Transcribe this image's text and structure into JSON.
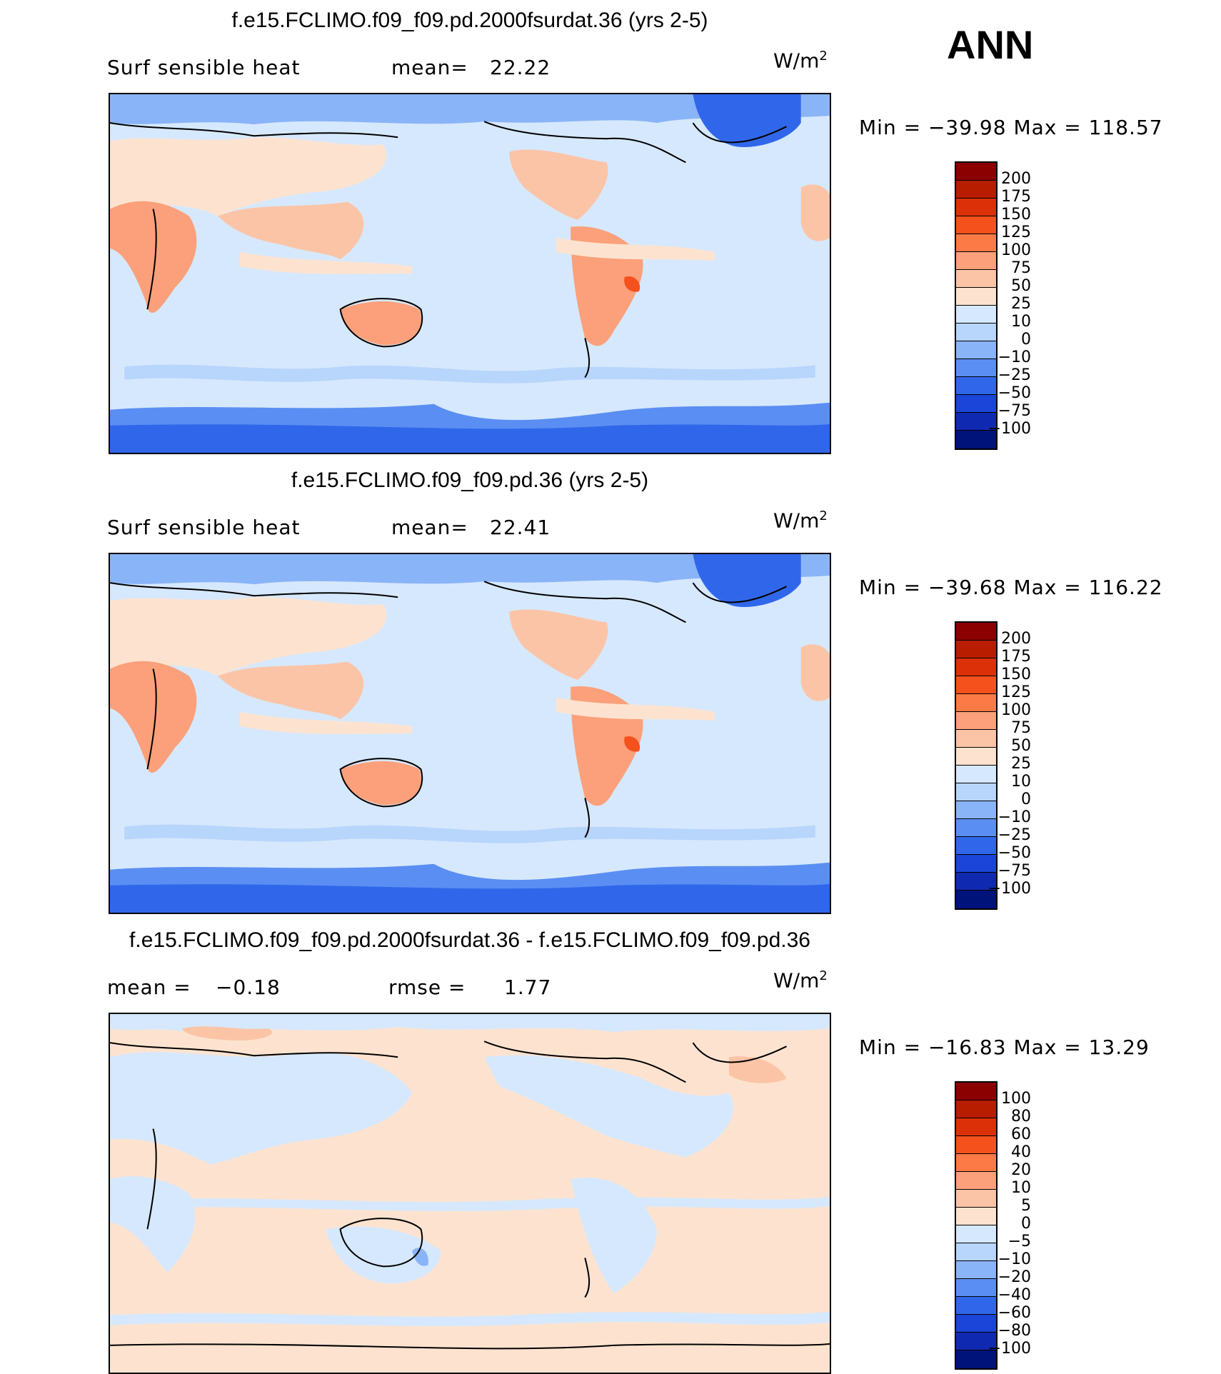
{
  "season": "ANN",
  "units": "W/m",
  "units_sup": "2",
  "panels": [
    {
      "title": "f.e15.FCLIMO.f09_f09.pd.2000fsurdat.36 (yrs 2-5)",
      "left_label": "Surf  sensible  heat",
      "stat_label": "mean=",
      "stat_value": "22.22",
      "minmax": "Min  =  −39.98  Max  =  118.57"
    },
    {
      "title": "f.e15.FCLIMO.f09_f09.pd.36 (yrs 2-5)",
      "left_label": "Surf  sensible  heat",
      "stat_label": "mean=",
      "stat_value": "22.41",
      "minmax": "Min  =  −39.68  Max  =  116.22"
    },
    {
      "title": "f.e15.FCLIMO.f09_f09.pd.2000fsurdat.36 - f.e15.FCLIMO.f09_f09.pd.36",
      "left_label": "mean  =",
      "left_value": "−0.18",
      "stat_label": "rmse  =",
      "stat_value": "1.77",
      "minmax": "Min  =  −16.83  Max  =   13.29"
    }
  ],
  "colorbar_abs": {
    "labels": [
      "200",
      "175",
      "150",
      "125",
      "100",
      "75",
      "50",
      "25",
      "10",
      "0",
      "−10",
      "−25",
      "−50",
      "−75",
      "−100"
    ],
    "colors": [
      "#8b0000",
      "#b81d00",
      "#dc3108",
      "#f4511c",
      "#fb7a45",
      "#fba07a",
      "#fcc4a6",
      "#fde3cf",
      "#d6e8fd",
      "#b8d5fc",
      "#8ab4f8",
      "#5a8ef2",
      "#3067ea",
      "#1a45d8",
      "#0f2ab0",
      "#00137a"
    ]
  },
  "colorbar_diff": {
    "labels": [
      "100",
      "80",
      "60",
      "40",
      "20",
      "10",
      "5",
      "0",
      "−5",
      "−10",
      "−20",
      "−40",
      "−60",
      "−80",
      "−100"
    ],
    "colors": [
      "#8b0000",
      "#b81d00",
      "#dc3108",
      "#f4511c",
      "#fb7a45",
      "#fba07a",
      "#fcc4a6",
      "#fde3cf",
      "#d6e8fd",
      "#b8d5fc",
      "#8ab4f8",
      "#5a8ef2",
      "#3067ea",
      "#1a45d8",
      "#0f2ab0",
      "#00137a"
    ]
  }
}
